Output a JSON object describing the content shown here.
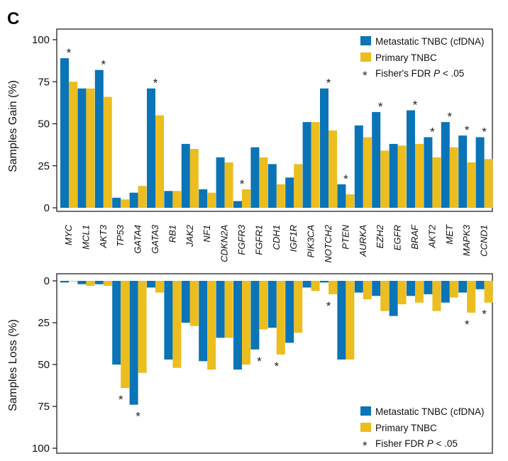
{
  "panel_label": "C",
  "colors": {
    "metastatic": "#0a74b6",
    "primary": "#ecbd1e",
    "axis": "#111111"
  },
  "chart_data": [
    {
      "type": "bar",
      "title": "",
      "ylabel": "Samples Gain (%)",
      "ylim": [
        0,
        100
      ],
      "yticks": [
        0,
        25,
        50,
        75,
        100
      ],
      "direction": "up",
      "legend_position": "top-right",
      "legend": [
        "Metastatic TNBC (cfDNA)",
        "Primary TNBC",
        "Fisher's FDR P < .05"
      ],
      "legend_star_prefix": "Fisher's FDR ",
      "legend_star_italic": "P",
      "legend_star_suffix": " < .05",
      "categories": [
        "MYC",
        "MCL1",
        "AKT3",
        "TP53",
        "GATA4",
        "GATA3",
        "RB1",
        "JAK2",
        "NF1",
        "CDKN2A",
        "FGFR3",
        "FGFR1",
        "CDH1",
        "IGF1R",
        "PIK3CA",
        "NOTCH2",
        "PTEN",
        "AURKA",
        "EZH2",
        "EGFR",
        "BRAF",
        "AKT2",
        "MET",
        "MAPK3",
        "CCND1"
      ],
      "series": [
        {
          "name": "Metastatic TNBC (cfDNA)",
          "values": [
            89,
            71,
            82,
            6,
            9,
            71,
            10,
            38,
            11,
            30,
            4,
            36,
            26,
            18,
            51,
            71,
            14,
            49,
            57,
            38,
            58,
            42,
            51,
            43,
            42
          ]
        },
        {
          "name": "Primary TNBC",
          "values": [
            75,
            71,
            66,
            5,
            13,
            55,
            10,
            35,
            9,
            27,
            11,
            30,
            14,
            26,
            51,
            46,
            8,
            42,
            34,
            37,
            38,
            30,
            36,
            27,
            29
          ]
        }
      ],
      "significant": [
        "MYC",
        "AKT3",
        "GATA3",
        "FGFR3",
        "NOTCH2",
        "PTEN",
        "EZH2",
        "BRAF",
        "AKT2",
        "MET",
        "MAPK3",
        "CCND1"
      ]
    },
    {
      "type": "bar",
      "title": "",
      "ylabel": "Samples Loss (%)",
      "ylim": [
        0,
        100
      ],
      "yticks": [
        0,
        25,
        50,
        75,
        100
      ],
      "direction": "down",
      "legend_position": "bottom-right",
      "legend": [
        "Metastatic TNBC (cfDNA)",
        "Primary TNBC",
        "Fisher FDR P < .05"
      ],
      "legend_star_prefix": "Fisher FDR ",
      "legend_star_italic": "P",
      "legend_star_suffix": " < .05",
      "categories": [
        "MYC",
        "MCL1",
        "AKT3",
        "TP53",
        "GATA4",
        "GATA3",
        "RB1",
        "JAK2",
        "NF1",
        "CDKN2A",
        "FGFR3",
        "FGFR1",
        "CDH1",
        "IGF1R",
        "PIK3CA",
        "NOTCH2",
        "PTEN",
        "AURKA",
        "EZH2",
        "EGFR",
        "BRAF",
        "AKT2",
        "MET",
        "MAPK3",
        "CCND1"
      ],
      "series": [
        {
          "name": "Metastatic TNBC (cfDNA)",
          "values": [
            1,
            2,
            2,
            50,
            74,
            4,
            47,
            25,
            48,
            34,
            53,
            41,
            28,
            37,
            4,
            1,
            47,
            7,
            9,
            21,
            9,
            8,
            13,
            7,
            5
          ]
        },
        {
          "name": "Primary TNBC",
          "values": [
            0,
            3,
            3,
            64,
            55,
            7,
            52,
            27,
            53,
            34,
            50,
            29,
            44,
            31,
            6,
            8,
            47,
            11,
            18,
            14,
            13,
            18,
            10,
            19,
            13
          ]
        }
      ],
      "significant": [
        "TP53",
        "GATA4",
        "FGFR1",
        "CDH1",
        "NOTCH2",
        "MAPK3",
        "CCND1"
      ]
    }
  ]
}
